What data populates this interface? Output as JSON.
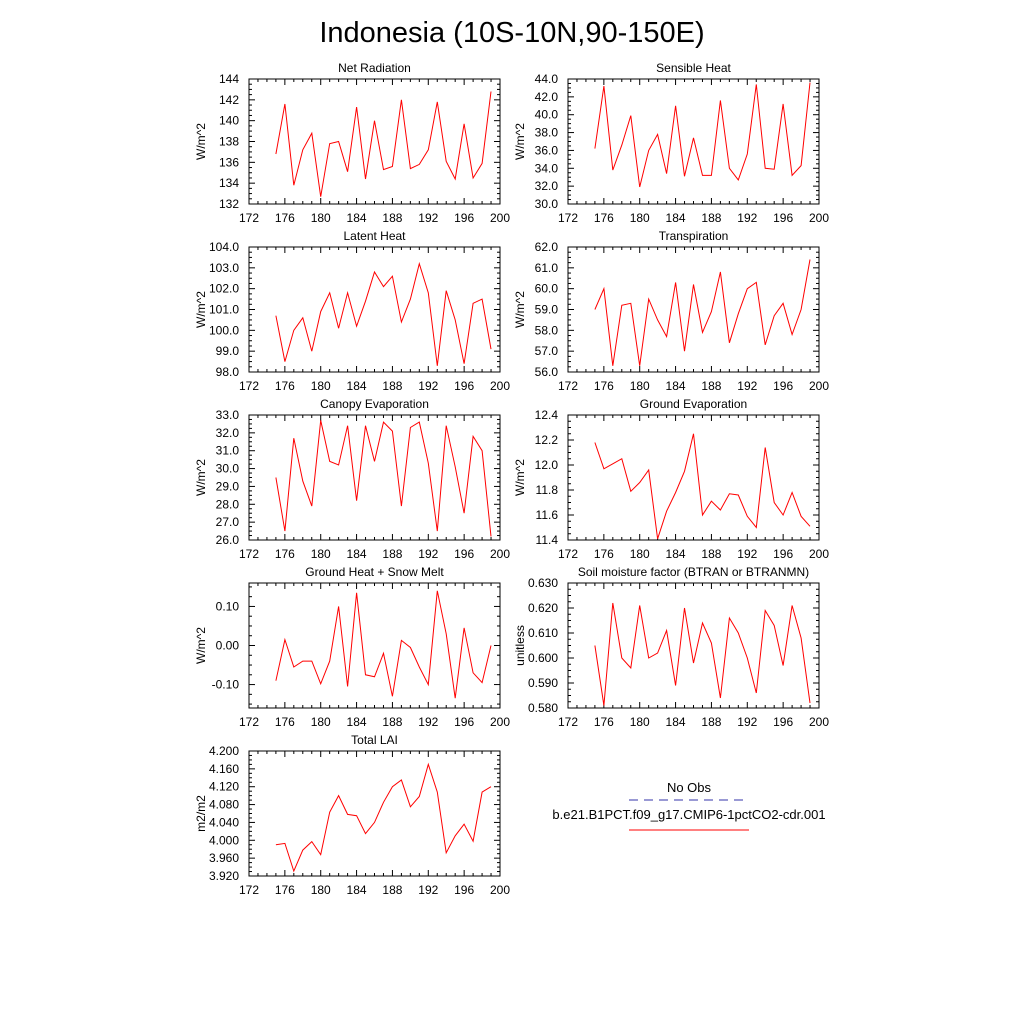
{
  "page_title": "Indonesia (10S-10N,90-150E)",
  "legend": {
    "obs_label": "No Obs",
    "case_label": "b.e21.B1PCT.f09_g17.CMIP6-1pctCO2-cdr.001",
    "obs_color": "#3333aa",
    "case_color": "#ff0000"
  },
  "chart_data": [
    {
      "type": "line",
      "title": "Net Radiation",
      "ylabel": "W/m^2",
      "xlim": [
        172,
        200
      ],
      "ylim": [
        132,
        144
      ],
      "xticks": [
        172,
        176,
        180,
        184,
        188,
        192,
        196,
        200
      ],
      "yticks": [
        132,
        134,
        136,
        138,
        140,
        142,
        144
      ],
      "ytick_labels": [
        "132",
        "134",
        "136",
        "138",
        "140",
        "142",
        "144"
      ],
      "x": [
        175,
        176,
        177,
        178,
        179,
        180,
        181,
        182,
        183,
        184,
        185,
        186,
        187,
        188,
        189,
        190,
        191,
        192,
        193,
        194,
        195,
        196,
        197,
        198,
        199
      ],
      "series": [
        {
          "values": [
            136.8,
            141.6,
            133.8,
            137.2,
            138.8,
            132.7,
            137.8,
            138.0,
            135.1,
            141.3,
            134.4,
            140.0,
            135.3,
            135.6,
            142.0,
            135.4,
            135.8,
            137.2,
            141.8,
            136.1,
            134.4,
            139.7,
            134.5,
            135.9,
            142.8
          ]
        }
      ]
    },
    {
      "type": "line",
      "title": "Sensible Heat",
      "ylabel": "W/m^2",
      "xlim": [
        172,
        200
      ],
      "ylim": [
        30,
        44
      ],
      "xticks": [
        172,
        176,
        180,
        184,
        188,
        192,
        196,
        200
      ],
      "yticks": [
        30,
        32,
        34,
        36,
        38,
        40,
        42,
        44
      ],
      "ytick_labels": [
        "30.0",
        "32.0",
        "34.0",
        "36.0",
        "38.0",
        "40.0",
        "42.0",
        "44.0"
      ],
      "x": [
        175,
        176,
        177,
        178,
        179,
        180,
        181,
        182,
        183,
        184,
        185,
        186,
        187,
        188,
        189,
        190,
        191,
        192,
        193,
        194,
        195,
        196,
        197,
        198,
        199
      ],
      "series": [
        {
          "values": [
            36.2,
            43.2,
            33.8,
            36.6,
            39.9,
            31.9,
            36.0,
            37.8,
            33.4,
            41.0,
            33.1,
            37.4,
            33.2,
            33.2,
            41.6,
            34.0,
            32.7,
            35.6,
            43.4,
            34.0,
            33.9,
            41.2,
            33.2,
            34.3,
            43.6
          ]
        }
      ]
    },
    {
      "type": "line",
      "title": "Latent Heat",
      "ylabel": "W/m^2",
      "xlim": [
        172,
        200
      ],
      "ylim": [
        98,
        104
      ],
      "xticks": [
        172,
        176,
        180,
        184,
        188,
        192,
        196,
        200
      ],
      "yticks": [
        98,
        99,
        100,
        101,
        102,
        103,
        104
      ],
      "ytick_labels": [
        "98.0",
        "99.0",
        "100.0",
        "101.0",
        "102.0",
        "103.0",
        "104.0"
      ],
      "x": [
        175,
        176,
        177,
        178,
        179,
        180,
        181,
        182,
        183,
        184,
        185,
        186,
        187,
        188,
        189,
        190,
        191,
        192,
        193,
        194,
        195,
        196,
        197,
        198,
        199
      ],
      "series": [
        {
          "values": [
            100.7,
            98.5,
            100.0,
            100.6,
            99.0,
            100.9,
            101.8,
            100.1,
            101.8,
            100.2,
            101.4,
            102.8,
            102.1,
            102.6,
            100.4,
            101.5,
            103.2,
            101.8,
            98.3,
            101.9,
            100.5,
            98.4,
            101.3,
            101.5,
            99.1
          ]
        }
      ]
    },
    {
      "type": "line",
      "title": "Transpiration",
      "ylabel": "W/m^2",
      "xlim": [
        172,
        200
      ],
      "ylim": [
        56,
        62
      ],
      "xticks": [
        172,
        176,
        180,
        184,
        188,
        192,
        196,
        200
      ],
      "yticks": [
        56,
        57,
        58,
        59,
        60,
        61,
        62
      ],
      "ytick_labels": [
        "56.0",
        "57.0",
        "58.0",
        "59.0",
        "60.0",
        "61.0",
        "62.0"
      ],
      "x": [
        175,
        176,
        177,
        178,
        179,
        180,
        181,
        182,
        183,
        184,
        185,
        186,
        187,
        188,
        189,
        190,
        191,
        192,
        193,
        194,
        195,
        196,
        197,
        198,
        199
      ],
      "series": [
        {
          "values": [
            59.0,
            60.0,
            56.3,
            59.2,
            59.3,
            56.3,
            59.5,
            58.5,
            57.7,
            60.3,
            57.0,
            60.2,
            57.9,
            58.9,
            60.8,
            57.4,
            58.8,
            60.0,
            60.3,
            57.3,
            58.7,
            59.3,
            57.8,
            59.0,
            61.4
          ]
        }
      ]
    },
    {
      "type": "line",
      "title": "Canopy Evaporation",
      "ylabel": "W/m^2",
      "xlim": [
        172,
        200
      ],
      "ylim": [
        26,
        33
      ],
      "xticks": [
        172,
        176,
        180,
        184,
        188,
        192,
        196,
        200
      ],
      "yticks": [
        26,
        27,
        28,
        29,
        30,
        31,
        32,
        33
      ],
      "ytick_labels": [
        "26.0",
        "27.0",
        "28.0",
        "29.0",
        "30.0",
        "31.0",
        "32.0",
        "33.0"
      ],
      "x": [
        175,
        176,
        177,
        178,
        179,
        180,
        181,
        182,
        183,
        184,
        185,
        186,
        187,
        188,
        189,
        190,
        191,
        192,
        193,
        194,
        195,
        196,
        197,
        198,
        199
      ],
      "series": [
        {
          "values": [
            29.5,
            26.5,
            31.7,
            29.3,
            27.9,
            32.7,
            30.4,
            30.2,
            32.4,
            28.2,
            32.4,
            30.4,
            32.6,
            32.1,
            27.9,
            32.3,
            32.6,
            30.3,
            26.5,
            32.4,
            30.1,
            27.5,
            31.8,
            31.0,
            26.2
          ]
        }
      ]
    },
    {
      "type": "line",
      "title": "Ground Evaporation",
      "ylabel": "W/m^2",
      "xlim": [
        172,
        200
      ],
      "ylim": [
        11.4,
        12.4
      ],
      "xticks": [
        172,
        176,
        180,
        184,
        188,
        192,
        196,
        200
      ],
      "yticks": [
        11.4,
        11.6,
        11.8,
        12.0,
        12.2,
        12.4
      ],
      "ytick_labels": [
        "11.4",
        "11.6",
        "11.8",
        "12.0",
        "12.2",
        "12.4"
      ],
      "x": [
        175,
        176,
        177,
        178,
        179,
        180,
        181,
        182,
        183,
        184,
        185,
        186,
        187,
        188,
        189,
        190,
        191,
        192,
        193,
        194,
        195,
        196,
        197,
        198,
        199
      ],
      "series": [
        {
          "values": [
            12.18,
            11.97,
            12.01,
            12.05,
            11.79,
            11.86,
            11.96,
            11.41,
            11.63,
            11.78,
            11.95,
            12.25,
            11.6,
            11.71,
            11.64,
            11.77,
            11.76,
            11.59,
            11.5,
            12.14,
            11.7,
            11.6,
            11.78,
            11.59,
            11.51
          ]
        }
      ]
    },
    {
      "type": "line",
      "title": "Ground Heat + Snow Melt",
      "ylabel": "W/m^2",
      "xlim": [
        172,
        200
      ],
      "ylim": [
        -0.16,
        0.16
      ],
      "xticks": [
        172,
        176,
        180,
        184,
        188,
        192,
        196,
        200
      ],
      "yticks": [
        -0.1,
        0.0,
        0.1
      ],
      "ytick_labels": [
        "-0.10",
        "0.00",
        "0.10"
      ],
      "x": [
        175,
        176,
        177,
        178,
        179,
        180,
        181,
        182,
        183,
        184,
        185,
        186,
        187,
        188,
        189,
        190,
        191,
        192,
        193,
        194,
        195,
        196,
        197,
        198,
        199
      ],
      "series": [
        {
          "values": [
            -0.09,
            0.015,
            -0.055,
            -0.04,
            -0.04,
            -0.098,
            -0.04,
            0.1,
            -0.105,
            0.135,
            -0.075,
            -0.08,
            -0.02,
            -0.13,
            0.013,
            -0.005,
            -0.055,
            -0.1,
            0.14,
            0.03,
            -0.135,
            0.045,
            -0.07,
            -0.095,
            0.0
          ]
        }
      ]
    },
    {
      "type": "line",
      "title": "Soil moisture factor (BTRAN or BTRANMN)",
      "ylabel": "unitless",
      "xlim": [
        172,
        200
      ],
      "ylim": [
        0.58,
        0.63
      ],
      "xticks": [
        172,
        176,
        180,
        184,
        188,
        192,
        196,
        200
      ],
      "yticks": [
        0.58,
        0.59,
        0.6,
        0.61,
        0.62,
        0.63
      ],
      "ytick_labels": [
        "0.580",
        "0.590",
        "0.600",
        "0.610",
        "0.620",
        "0.630"
      ],
      "x": [
        175,
        176,
        177,
        178,
        179,
        180,
        181,
        182,
        183,
        184,
        185,
        186,
        187,
        188,
        189,
        190,
        191,
        192,
        193,
        194,
        195,
        196,
        197,
        198,
        199
      ],
      "series": [
        {
          "values": [
            0.605,
            0.581,
            0.622,
            0.6,
            0.596,
            0.621,
            0.6,
            0.602,
            0.611,
            0.589,
            0.62,
            0.598,
            0.614,
            0.606,
            0.584,
            0.616,
            0.61,
            0.6,
            0.586,
            0.619,
            0.613,
            0.597,
            0.621,
            0.608,
            0.582
          ]
        }
      ]
    },
    {
      "type": "line",
      "title": "Total LAI",
      "ylabel": "m2/m2",
      "xlim": [
        172,
        200
      ],
      "ylim": [
        3.92,
        4.2
      ],
      "xticks": [
        172,
        176,
        180,
        184,
        188,
        192,
        196,
        200
      ],
      "yticks": [
        3.92,
        3.96,
        4.0,
        4.04,
        4.08,
        4.12,
        4.16,
        4.2
      ],
      "ytick_labels": [
        "3.920",
        "3.960",
        "4.000",
        "4.040",
        "4.080",
        "4.120",
        "4.160",
        "4.200"
      ],
      "x": [
        175,
        176,
        177,
        178,
        179,
        180,
        181,
        182,
        183,
        184,
        185,
        186,
        187,
        188,
        189,
        190,
        191,
        192,
        193,
        194,
        195,
        196,
        197,
        198,
        199
      ],
      "series": [
        {
          "values": [
            3.99,
            3.993,
            3.931,
            3.978,
            3.997,
            3.968,
            4.063,
            4.1,
            4.058,
            4.055,
            4.015,
            4.04,
            4.085,
            4.12,
            4.135,
            4.075,
            4.098,
            4.17,
            4.108,
            3.972,
            4.01,
            4.036,
            3.998,
            4.108,
            4.12
          ]
        }
      ]
    }
  ]
}
